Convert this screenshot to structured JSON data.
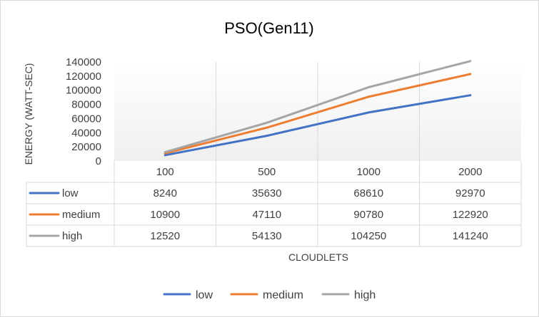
{
  "chart_data": {
    "type": "line",
    "title": "PSO(Gen11)",
    "xlabel": "CLOUDLETS",
    "ylabel": "ENERGY (WATT-SEC)",
    "categories": [
      "100",
      "500",
      "1000",
      "2000"
    ],
    "ylim": [
      0,
      140000
    ],
    "yticks": [
      "0",
      "20000",
      "40000",
      "60000",
      "80000",
      "100000",
      "120000",
      "140000"
    ],
    "grid": true,
    "legend_position": "bottom",
    "data_table": true,
    "series": [
      {
        "name": "low",
        "color": "#4472c4",
        "values": [
          8240,
          35630,
          68610,
          92970
        ]
      },
      {
        "name": "medium",
        "color": "#ed7d31",
        "values": [
          10900,
          47110,
          90780,
          122920
        ]
      },
      {
        "name": "high",
        "color": "#a5a5a5",
        "values": [
          12520,
          54130,
          104250,
          141240
        ]
      }
    ]
  }
}
